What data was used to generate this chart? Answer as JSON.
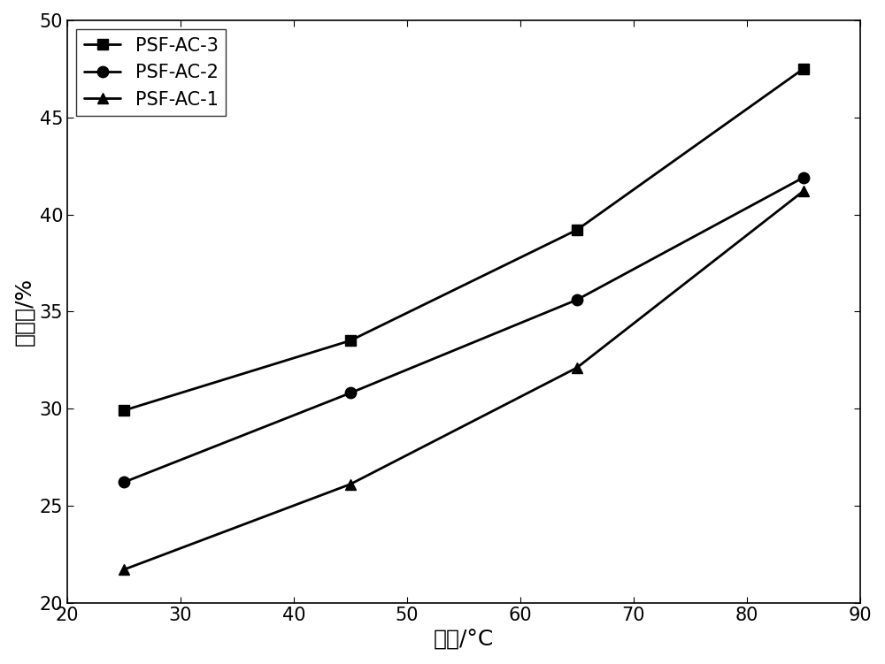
{
  "x": [
    25,
    45,
    65,
    85
  ],
  "series": [
    {
      "label": "PSF-AC-3",
      "y": [
        29.9,
        33.5,
        39.2,
        47.5
      ],
      "marker": "s",
      "markersize": 9,
      "linewidth": 2.0
    },
    {
      "label": "PSF-AC-2",
      "y": [
        26.2,
        30.8,
        35.6,
        41.9
      ],
      "marker": "o",
      "markersize": 9,
      "linewidth": 2.0
    },
    {
      "label": "PSF-AC-1",
      "y": [
        21.7,
        26.1,
        32.1,
        41.2
      ],
      "marker": "^",
      "markersize": 9,
      "linewidth": 2.0
    }
  ],
  "xlabel": "温度/°C",
  "ylabel": "吸水率/%",
  "xlim": [
    20,
    90
  ],
  "ylim": [
    20,
    50
  ],
  "xticks": [
    20,
    30,
    40,
    50,
    60,
    70,
    80,
    90
  ],
  "yticks": [
    20,
    25,
    30,
    35,
    40,
    45,
    50
  ],
  "line_color": "#000000",
  "background_color": "#ffffff",
  "legend_loc": "upper left",
  "legend_fontsize": 15,
  "axis_fontsize": 18,
  "tick_fontsize": 15,
  "figsize": [
    10.0,
    7.51
  ],
  "dpi": 100
}
